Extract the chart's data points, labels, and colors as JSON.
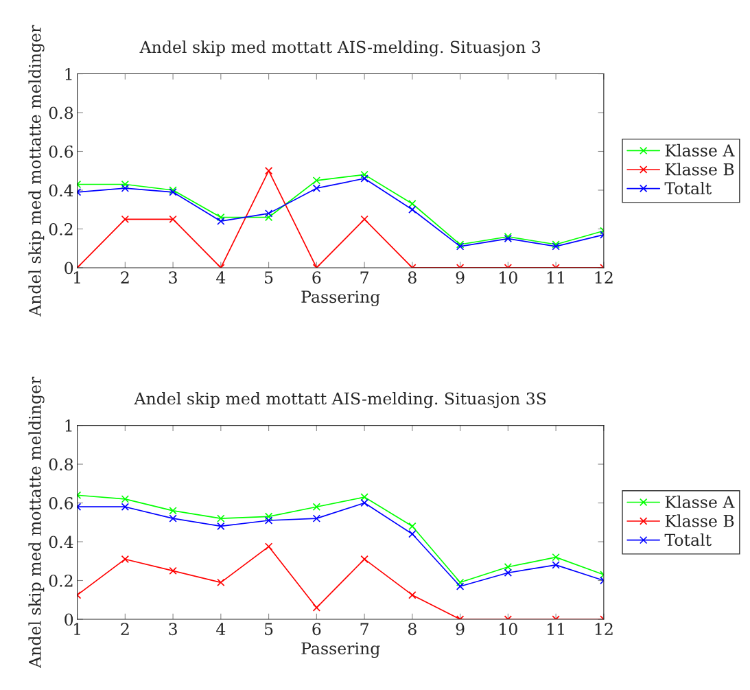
{
  "chart_data": [
    {
      "type": "line",
      "title": "Andel skip med mottatt AIS-melding. Situasjon 3",
      "xlabel": "Passering",
      "ylabel": "Andel skip med mottatte meldinger",
      "x": [
        1,
        2,
        3,
        4,
        5,
        6,
        7,
        8,
        9,
        10,
        11,
        12
      ],
      "xlim": [
        1,
        12
      ],
      "xticks": [
        1,
        2,
        3,
        4,
        5,
        6,
        7,
        8,
        9,
        10,
        11,
        12
      ],
      "ylim": [
        0,
        1
      ],
      "yticks": [
        0,
        0.2,
        0.4,
        0.6,
        0.8,
        1
      ],
      "grid": false,
      "legend": "right",
      "marker": "cross",
      "line_style": "solid",
      "series": [
        {
          "name": "Klasse A",
          "color": "#00ff00",
          "values": [
            0.43,
            0.43,
            0.4,
            0.26,
            0.26,
            0.45,
            0.48,
            0.33,
            0.12,
            0.16,
            0.12,
            0.19
          ]
        },
        {
          "name": "Klasse B",
          "color": "#ff0000",
          "values": [
            0,
            0.25,
            0.25,
            0,
            0.5,
            0,
            0.25,
            0,
            0,
            0,
            0,
            0
          ]
        },
        {
          "name": "Totalt",
          "color": "#0000ff",
          "values": [
            0.39,
            0.41,
            0.39,
            0.24,
            0.28,
            0.41,
            0.46,
            0.3,
            0.11,
            0.15,
            0.11,
            0.17
          ]
        }
      ]
    },
    {
      "type": "line",
      "title": "Andel skip med mottatt AIS-melding. Situasjon 3S",
      "xlabel": "Passering",
      "ylabel": "Andel skip med mottatte meldinger",
      "x": [
        1,
        2,
        3,
        4,
        5,
        6,
        7,
        8,
        9,
        10,
        11,
        12
      ],
      "xlim": [
        1,
        12
      ],
      "xticks": [
        1,
        2,
        3,
        4,
        5,
        6,
        7,
        8,
        9,
        10,
        11,
        12
      ],
      "ylim": [
        0,
        1
      ],
      "yticks": [
        0,
        0.2,
        0.4,
        0.6,
        0.8,
        1
      ],
      "grid": false,
      "legend": "right",
      "marker": "cross",
      "line_style": "solid",
      "series": [
        {
          "name": "Klasse A",
          "color": "#00ff00",
          "values": [
            0.64,
            0.62,
            0.56,
            0.52,
            0.53,
            0.58,
            0.63,
            0.48,
            0.19,
            0.27,
            0.32,
            0.23
          ]
        },
        {
          "name": "Klasse B",
          "color": "#ff0000",
          "values": [
            0.125,
            0.31,
            0.25,
            0.19,
            0.375,
            0.06,
            0.31,
            0.125,
            0,
            0,
            0,
            0
          ]
        },
        {
          "name": "Totalt",
          "color": "#0000ff",
          "values": [
            0.58,
            0.58,
            0.52,
            0.48,
            0.51,
            0.52,
            0.6,
            0.44,
            0.17,
            0.24,
            0.28,
            0.2
          ]
        }
      ]
    }
  ]
}
